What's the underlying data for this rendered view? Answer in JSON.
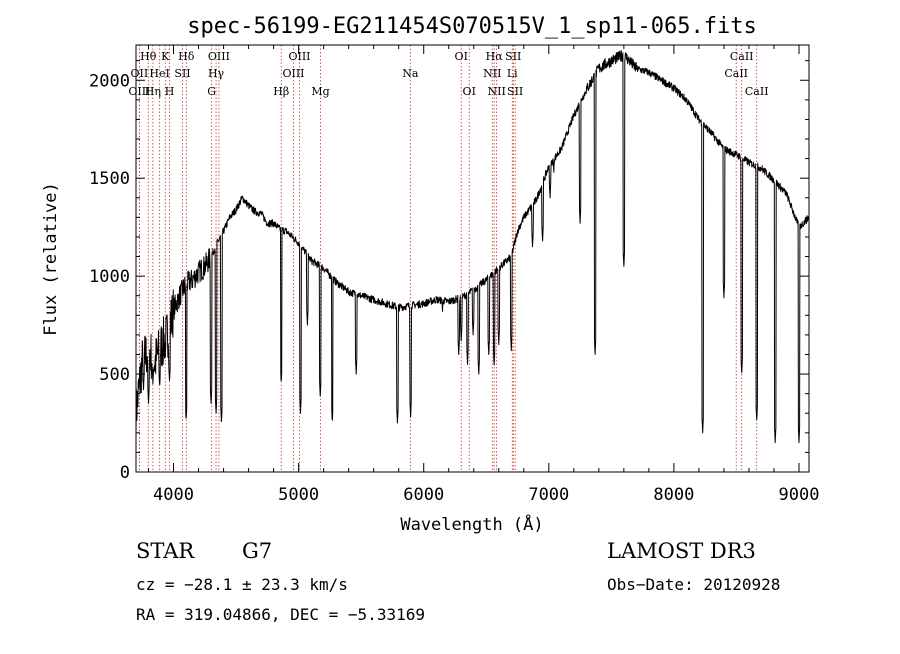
{
  "chart_data": {
    "type": "line",
    "title": "spec-56199-EG211454S070515V_1_sp11-065.fits",
    "xlabel": "Wavelength (Å)",
    "ylabel": "Flux (relative)",
    "xlim": [
      3700,
      9080
    ],
    "ylim": [
      0,
      2180
    ],
    "x_ticks": [
      4000,
      5000,
      6000,
      7000,
      8000,
      9000
    ],
    "y_ticks": [
      0,
      500,
      1000,
      1500,
      2000
    ],
    "x_tick_labels": [
      "4000",
      "5000",
      "6000",
      "7000",
      "8000",
      "9000"
    ],
    "y_tick_labels": [
      "0",
      "500",
      "1000",
      "1500",
      "2000"
    ],
    "series": [
      {
        "name": "flux",
        "continuum": [
          [
            3700,
            300
          ],
          [
            3750,
            560
          ],
          [
            3800,
            620
          ],
          [
            3850,
            560
          ],
          [
            3900,
            640
          ],
          [
            3950,
            700
          ],
          [
            4000,
            830
          ],
          [
            4050,
            900
          ],
          [
            4100,
            960
          ],
          [
            4150,
            980
          ],
          [
            4200,
            1020
          ],
          [
            4250,
            1050
          ],
          [
            4300,
            1100
          ],
          [
            4350,
            1170
          ],
          [
            4400,
            1230
          ],
          [
            4450,
            1300
          ],
          [
            4500,
            1340
          ],
          [
            4550,
            1400
          ],
          [
            4600,
            1360
          ],
          [
            4650,
            1330
          ],
          [
            4700,
            1320
          ],
          [
            4750,
            1270
          ],
          [
            4800,
            1270
          ],
          [
            4850,
            1240
          ],
          [
            4900,
            1230
          ],
          [
            4950,
            1200
          ],
          [
            5000,
            1170
          ],
          [
            5100,
            1080
          ],
          [
            5200,
            1040
          ],
          [
            5300,
            970
          ],
          [
            5400,
            920
          ],
          [
            5500,
            900
          ],
          [
            5600,
            880
          ],
          [
            5700,
            860
          ],
          [
            5800,
            840
          ],
          [
            5900,
            850
          ],
          [
            6000,
            860
          ],
          [
            6100,
            880
          ],
          [
            6200,
            870
          ],
          [
            6300,
            890
          ],
          [
            6400,
            930
          ],
          [
            6500,
            980
          ],
          [
            6600,
            1040
          ],
          [
            6700,
            1100
          ],
          [
            6750,
            1230
          ],
          [
            6800,
            1300
          ],
          [
            6900,
            1390
          ],
          [
            7000,
            1560
          ],
          [
            7100,
            1650
          ],
          [
            7200,
            1820
          ],
          [
            7300,
            1950
          ],
          [
            7400,
            2060
          ],
          [
            7500,
            2100
          ],
          [
            7600,
            2130
          ],
          [
            7700,
            2060
          ],
          [
            7800,
            2040
          ],
          [
            7900,
            2000
          ],
          [
            8000,
            1960
          ],
          [
            8100,
            1900
          ],
          [
            8200,
            1800
          ],
          [
            8300,
            1730
          ],
          [
            8400,
            1650
          ],
          [
            8500,
            1620
          ],
          [
            8600,
            1580
          ],
          [
            8700,
            1550
          ],
          [
            8800,
            1490
          ],
          [
            8900,
            1420
          ],
          [
            9000,
            1250
          ],
          [
            9050,
            1280
          ],
          [
            9080,
            1300
          ]
        ],
        "absorption_features": [
          [
            3760,
            420
          ],
          [
            3800,
            350
          ],
          [
            3835,
            450
          ],
          [
            3889,
            430
          ],
          [
            3934,
            600
          ],
          [
            3968,
            460
          ],
          [
            4101,
            260
          ],
          [
            4300,
            350
          ],
          [
            4340,
            300
          ],
          [
            4383,
            250
          ],
          [
            4861,
            450
          ],
          [
            5015,
            300
          ],
          [
            5070,
            750
          ],
          [
            5173,
            380
          ],
          [
            5269,
            250
          ],
          [
            5460,
            500
          ],
          [
            5790,
            250
          ],
          [
            5895,
            280
          ],
          [
            6150,
            820
          ],
          [
            6280,
            600
          ],
          [
            6300,
            670
          ],
          [
            6350,
            550
          ],
          [
            6395,
            700
          ],
          [
            6440,
            500
          ],
          [
            6520,
            600
          ],
          [
            6563,
            540
          ],
          [
            6600,
            650
          ],
          [
            6700,
            620
          ],
          [
            6870,
            1150
          ],
          [
            6950,
            1180
          ],
          [
            7010,
            1400
          ],
          [
            7040,
            1530
          ],
          [
            7250,
            1270
          ],
          [
            7370,
            600
          ],
          [
            7600,
            1050
          ],
          [
            8230,
            200
          ],
          [
            8400,
            890
          ],
          [
            8542,
            500
          ],
          [
            8662,
            260
          ],
          [
            8810,
            150
          ],
          [
            9000,
            150
          ]
        ]
      }
    ],
    "spectral_lines": [
      {
        "label": "Hθ",
        "wavelength": 3798,
        "row": 1
      },
      {
        "label": "K",
        "wavelength": 3934,
        "row": 1
      },
      {
        "label": "Hδ",
        "wavelength": 4102,
        "row": 1
      },
      {
        "label": "OIII",
        "wavelength": 4363,
        "row": 1
      },
      {
        "label": "OIII",
        "wavelength": 5007,
        "row": 1
      },
      {
        "label": "OI",
        "wavelength": 6300,
        "row": 1
      },
      {
        "label": "Hα",
        "wavelength": 6563,
        "row": 1
      },
      {
        "label": "SII",
        "wavelength": 6716,
        "row": 1
      },
      {
        "label": "CaII",
        "wavelength": 8542,
        "row": 1
      },
      {
        "label": "OII",
        "wavelength": 3727,
        "row": 2
      },
      {
        "label": "HeI",
        "wavelength": 3889,
        "row": 2
      },
      {
        "label": "SII",
        "wavelength": 4072,
        "row": 2
      },
      {
        "label": "Hγ",
        "wavelength": 4340,
        "row": 2
      },
      {
        "label": "OIII",
        "wavelength": 4959,
        "row": 2
      },
      {
        "label": "Na",
        "wavelength": 5893,
        "row": 2
      },
      {
        "label": "NII",
        "wavelength": 6548,
        "row": 2
      },
      {
        "label": "Li",
        "wavelength": 6708,
        "row": 2
      },
      {
        "label": "CaII",
        "wavelength": 8498,
        "row": 2
      },
      {
        "label": "OIII",
        "wavelength": 3727,
        "row": 3
      },
      {
        "label": "Hη",
        "wavelength": 3835,
        "row": 3
      },
      {
        "label": "H",
        "wavelength": 3968,
        "row": 3
      },
      {
        "label": "G",
        "wavelength": 4305,
        "row": 3
      },
      {
        "label": "Hβ",
        "wavelength": 4861,
        "row": 3
      },
      {
        "label": "Mg",
        "wavelength": 5175,
        "row": 3
      },
      {
        "label": "OI",
        "wavelength": 6364,
        "row": 3
      },
      {
        "label": "NII",
        "wavelength": 6583,
        "row": 3
      },
      {
        "label": "SII",
        "wavelength": 6731,
        "row": 3
      },
      {
        "label": "CaII",
        "wavelength": 8662,
        "row": 3
      }
    ]
  },
  "info": {
    "object_class": "STAR",
    "subclass": "G7",
    "survey": "LAMOST DR3",
    "redshift": "cz = −28.1 ± 23.3 km/s",
    "obs_date": "Obs−Date: 20120928",
    "coords": "RA = 319.04866, DEC =  −5.33169"
  }
}
